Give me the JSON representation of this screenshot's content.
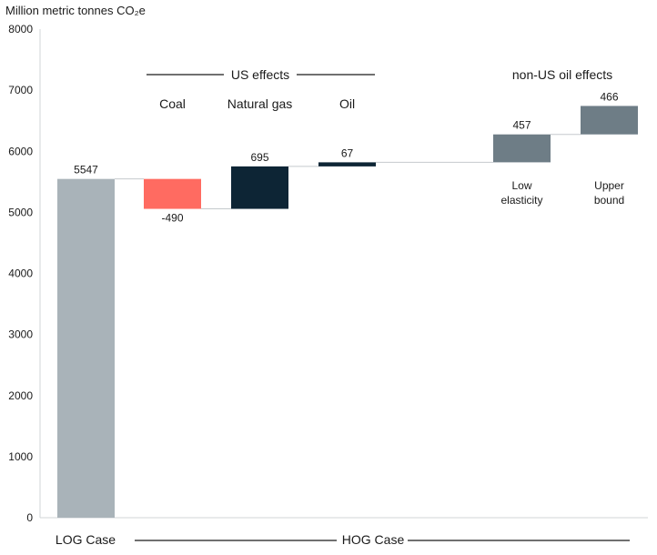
{
  "chart_data": {
    "type": "bar",
    "subtype": "waterfall",
    "ylabel": "Million metric tonnes CO₂e",
    "ylim": [
      0,
      8000
    ],
    "yticks": [
      0,
      1000,
      2000,
      3000,
      4000,
      5000,
      6000,
      7000,
      8000
    ],
    "grid": false,
    "bars": [
      {
        "id": "log",
        "base": 0,
        "delta": 5547,
        "label": "5547",
        "category": "",
        "color": "#a9b3b9"
      },
      {
        "id": "coal",
        "base": 5547,
        "delta": -490,
        "label": "-490",
        "category": "Coal",
        "color": "#ff6b61"
      },
      {
        "id": "gas",
        "base": 5057,
        "delta": 695,
        "label": "695",
        "category": "Natural gas",
        "color": "#0d2535"
      },
      {
        "id": "oil",
        "base": 5752,
        "delta": 67,
        "label": "67",
        "category": "Oil",
        "color": "#0d2535"
      },
      {
        "id": "low",
        "base": 5819,
        "delta": 457,
        "label": "457",
        "category": "",
        "sub": [
          "Low",
          "elasticity"
        ],
        "color": "#6e7d86"
      },
      {
        "id": "upper",
        "base": 6276,
        "delta": 466,
        "label": "466",
        "category": "",
        "sub": [
          "Upper",
          "bound"
        ],
        "color": "#6e7d86"
      }
    ],
    "groups": {
      "us": "US effects",
      "nonus": "non-US oil effects"
    },
    "bottom": {
      "left": "LOG Case",
      "right": "HOG Case"
    }
  }
}
